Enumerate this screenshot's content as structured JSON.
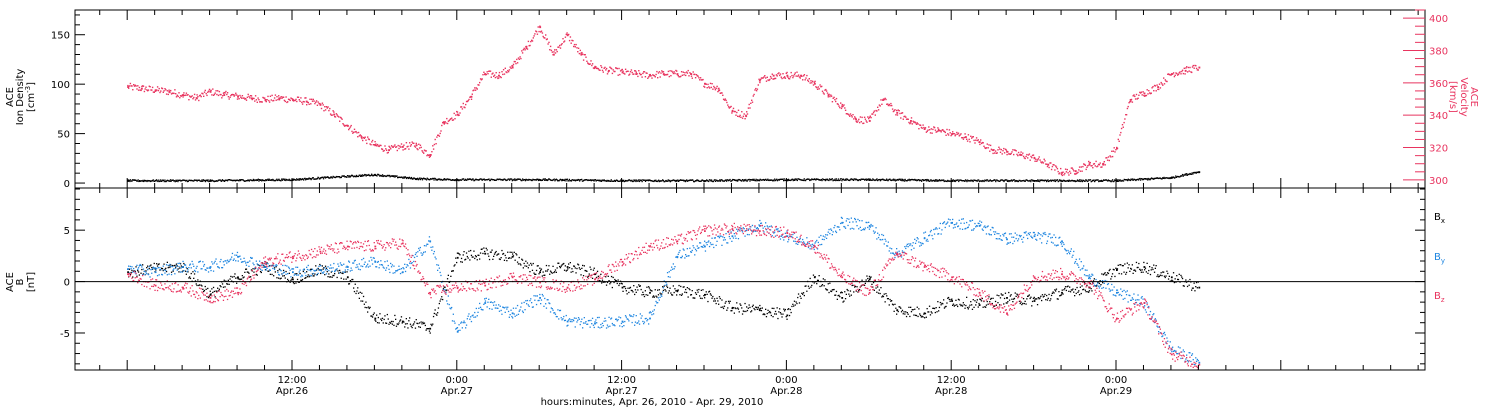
{
  "chart_data": [
    {
      "type": "scatter",
      "panel": "top",
      "ylabel_left": [
        "ACE",
        "Ion Density",
        "[cm-3]"
      ],
      "ylabel_right": [
        "ACE",
        "Velocity",
        "[km/s]"
      ],
      "ylim_left": [
        -5,
        175
      ],
      "yticks_left": [
        "0",
        "50",
        "100",
        "150"
      ],
      "ylim_right": [
        295,
        405
      ],
      "yticks_right": [
        "300",
        "320",
        "340",
        "360",
        "380",
        "400"
      ],
      "colors": {
        "density": "#000000",
        "velocity": "#e8345f"
      },
      "series": [
        {
          "name": "Ion Density",
          "axis": "left",
          "x_hours": [
            0,
            6,
            12,
            18,
            21,
            24,
            30,
            36,
            42,
            48,
            54,
            60,
            66,
            72,
            76,
            78
          ],
          "values": [
            3,
            3,
            4,
            9,
            5,
            4,
            4,
            3,
            3,
            4,
            4,
            3,
            3,
            3,
            6,
            12
          ]
        },
        {
          "name": "Velocity",
          "axis": "right",
          "x_hours": [
            0,
            1,
            2,
            3,
            4,
            5,
            6,
            7,
            8,
            9,
            10,
            11,
            12,
            13,
            14,
            15,
            16,
            17,
            18,
            19,
            20,
            21,
            22,
            23,
            24,
            25,
            26,
            27,
            28,
            29,
            30,
            31,
            32,
            33,
            34,
            35,
            36,
            37,
            38,
            39,
            40,
            41,
            42,
            43,
            44,
            45,
            46,
            47,
            48,
            49,
            50,
            51,
            52,
            53,
            54,
            55,
            56,
            57,
            58,
            59,
            60,
            61,
            62,
            63,
            64,
            65,
            66,
            67,
            68,
            69,
            70,
            71,
            72,
            73,
            74,
            75,
            76,
            77,
            78
          ],
          "values": [
            358,
            357,
            356,
            355,
            353,
            351,
            355,
            353,
            352,
            351,
            350,
            351,
            350,
            349,
            347,
            341,
            334,
            327,
            322,
            319,
            321,
            322,
            316,
            336,
            341,
            352,
            366,
            365,
            370,
            382,
            395,
            378,
            390,
            378,
            370,
            368,
            367,
            366,
            365,
            366,
            366,
            366,
            360,
            357,
            343,
            340,
            362,
            365,
            365,
            365,
            360,
            353,
            346,
            338,
            337,
            350,
            342,
            337,
            332,
            331,
            329,
            327,
            324,
            319,
            318,
            316,
            314,
            310,
            305,
            306,
            310,
            310,
            320,
            350,
            354,
            358,
            366,
            368,
            370
          ]
        }
      ]
    },
    {
      "type": "scatter",
      "panel": "bottom",
      "ylabel_left": [
        "ACE",
        "B",
        "[nT]"
      ],
      "ylim_left": [
        -8.6,
        9.1
      ],
      "yticks_left": [
        "-5",
        "0",
        "5"
      ],
      "legend": {
        "placement": "right",
        "items": [
          "Bx",
          "By",
          "Bz"
        ]
      },
      "colors": {
        "Bx": "#000000",
        "By": "#1f86e0",
        "Bz": "#e8345f"
      },
      "series": [
        {
          "name": "Bx",
          "x_hours": [
            0,
            2,
            4,
            6,
            8,
            10,
            12,
            14,
            16,
            18,
            20,
            22,
            24,
            26,
            28,
            30,
            32,
            34,
            36,
            38,
            40,
            42,
            44,
            46,
            48,
            50,
            52,
            54,
            56,
            58,
            60,
            62,
            64,
            66,
            68,
            70,
            72,
            74,
            76,
            78
          ],
          "values": [
            1.0,
            1.3,
            1.5,
            -1.2,
            0.5,
            1.5,
            0.3,
            1.2,
            0.5,
            -3.5,
            -3.8,
            -4.5,
            2.4,
            2.8,
            2.5,
            1.0,
            1.5,
            0.8,
            -0.5,
            -1.0,
            -0.8,
            -1.2,
            -2.5,
            -2.7,
            -3.2,
            0.5,
            -1.5,
            0.3,
            -2.7,
            -3.0,
            -1.8,
            -2.2,
            -1.5,
            -1.8,
            -1.0,
            -0.5,
            1.2,
            1.5,
            0.5,
            -0.5
          ]
        },
        {
          "name": "By",
          "x_hours": [
            0,
            2,
            4,
            6,
            8,
            10,
            12,
            14,
            16,
            18,
            20,
            22,
            24,
            26,
            28,
            30,
            32,
            34,
            36,
            38,
            40,
            42,
            44,
            46,
            48,
            50,
            52,
            54,
            56,
            58,
            60,
            62,
            64,
            66,
            68,
            70,
            72,
            74,
            76,
            78
          ],
          "values": [
            1.3,
            1.0,
            1.5,
            1.5,
            2.5,
            1.5,
            1.0,
            1.2,
            1.5,
            2.0,
            1.0,
            4.0,
            -4.8,
            -2.0,
            -3.0,
            -1.5,
            -3.8,
            -4.0,
            -3.8,
            -3.5,
            2.5,
            3.5,
            4.5,
            5.5,
            4.5,
            3.5,
            5.8,
            5.5,
            2.7,
            4.3,
            5.8,
            5.5,
            4.2,
            4.5,
            4.0,
            0.5,
            -1.0,
            -2.0,
            -6.5,
            -7.8
          ]
        },
        {
          "name": "Bz",
          "x_hours": [
            0,
            2,
            4,
            6,
            8,
            10,
            12,
            14,
            16,
            18,
            20,
            22,
            24,
            26,
            28,
            30,
            32,
            34,
            36,
            38,
            40,
            42,
            44,
            46,
            48,
            50,
            52,
            54,
            56,
            58,
            60,
            62,
            64,
            66,
            68,
            70,
            72,
            74,
            76,
            78
          ],
          "values": [
            0.8,
            -0.3,
            -0.5,
            -1.5,
            -1.0,
            2.0,
            2.5,
            3.0,
            3.5,
            3.5,
            3.8,
            -1.0,
            -0.5,
            -0.3,
            0.5,
            0.0,
            -0.5,
            0.3,
            2.0,
            3.5,
            4.0,
            5.0,
            5.2,
            5.0,
            4.8,
            3.5,
            0.5,
            -1.0,
            2.8,
            1.5,
            0.5,
            -1.0,
            -3.0,
            0.5,
            0.8,
            0.0,
            -3.5,
            -2.0,
            -7.0,
            -8.0
          ]
        }
      ]
    }
  ],
  "x_axis": {
    "range_hours": [
      -3.8,
      94.5
    ],
    "major_ticks": [
      {
        "hour": 12,
        "time": "12:00",
        "date": "Apr.26"
      },
      {
        "hour": 24,
        "time": "0:00",
        "date": "Apr.27"
      },
      {
        "hour": 36,
        "time": "12:00",
        "date": "Apr.27"
      },
      {
        "hour": 48,
        "time": "0:00",
        "date": "Apr.28"
      },
      {
        "hour": 60,
        "time": "12:00",
        "date": "Apr.28"
      },
      {
        "hour": 72,
        "time": "0:00",
        "date": "Apr.29"
      }
    ],
    "title": "hours:minutes, Apr. 26, 2010 - Apr. 29, 2010"
  }
}
